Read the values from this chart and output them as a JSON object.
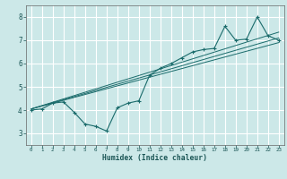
{
  "title": "",
  "xlabel": "Humidex (Indice chaleur)",
  "bg_color": "#cce8e8",
  "grid_color": "#ffffff",
  "line_color": "#1a6b6b",
  "xlim": [
    -0.5,
    23.5
  ],
  "ylim": [
    2.5,
    8.5
  ],
  "xticks": [
    0,
    1,
    2,
    3,
    4,
    5,
    6,
    7,
    8,
    9,
    10,
    11,
    12,
    13,
    14,
    15,
    16,
    17,
    18,
    19,
    20,
    21,
    22,
    23
  ],
  "yticks": [
    3,
    4,
    5,
    6,
    7,
    8
  ],
  "main_x": [
    0,
    1,
    2,
    3,
    4,
    5,
    6,
    7,
    8,
    9,
    10,
    11,
    12,
    13,
    14,
    15,
    16,
    17,
    18,
    19,
    20,
    21,
    22,
    23
  ],
  "main_y": [
    4.0,
    4.05,
    4.3,
    4.35,
    3.9,
    3.4,
    3.3,
    3.1,
    4.1,
    4.3,
    4.4,
    5.5,
    5.8,
    6.0,
    6.25,
    6.5,
    6.6,
    6.65,
    7.6,
    7.0,
    7.05,
    8.0,
    7.2,
    7.0
  ],
  "line1_x": [
    0,
    23
  ],
  "line1_y": [
    4.05,
    6.9
  ],
  "line2_x": [
    0,
    23
  ],
  "line2_y": [
    4.05,
    7.35
  ],
  "line3_x": [
    0,
    23
  ],
  "line3_y": [
    4.05,
    7.1
  ]
}
